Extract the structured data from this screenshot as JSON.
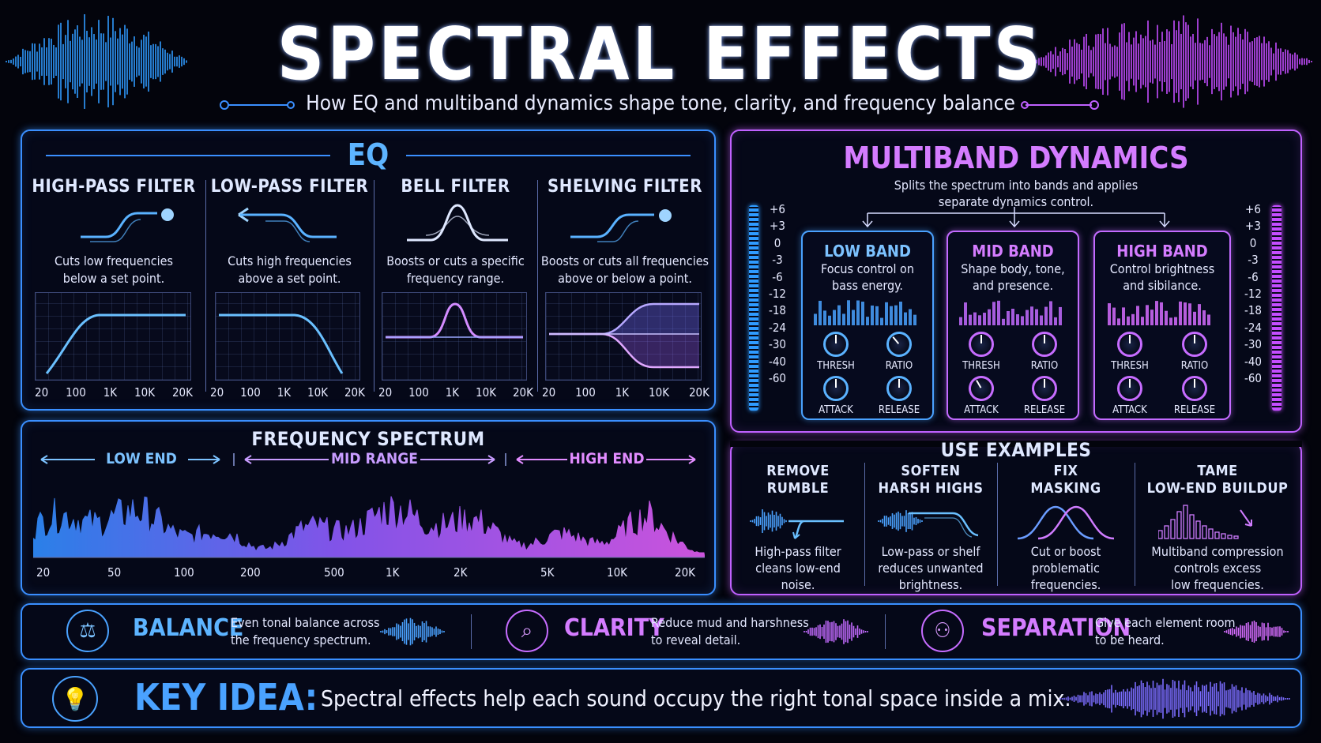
{
  "title": "SPECTRAL EFFECTS",
  "subtitle": "How EQ and multiband dynamics shape tone, clarity, and frequency balance",
  "eq": {
    "heading": "EQ",
    "filters": [
      {
        "name": "HIGH-PASS FILTER",
        "desc1": "Cuts low frequencies",
        "desc2": "below a set point.",
        "ticks": [
          "20",
          "100",
          "1K",
          "10K",
          "20K"
        ]
      },
      {
        "name": "LOW-PASS FILTER",
        "desc1": "Cuts high frequencies",
        "desc2": "above a set point.",
        "ticks": [
          "20",
          "100",
          "1K",
          "10K",
          "20K"
        ]
      },
      {
        "name": "BELL FILTER",
        "desc1": "Boosts or cuts a specific",
        "desc2": "frequency range.",
        "ticks": [
          "20",
          "100",
          "1K",
          "10K",
          "20K"
        ]
      },
      {
        "name": "SHELVING FILTER",
        "desc1": "Boosts or cuts all frequencies",
        "desc2": "above or below a point.",
        "ticks": [
          "20",
          "100",
          "1K",
          "10K",
          "20K"
        ]
      }
    ]
  },
  "spectrum": {
    "heading": "FREQUENCY SPECTRUM",
    "regions": [
      "LOW END",
      "MID RANGE",
      "HIGH END"
    ],
    "ticks": [
      "20",
      "50",
      "100",
      "200",
      "500",
      "1K",
      "2K",
      "5K",
      "10K",
      "20K"
    ]
  },
  "multiband": {
    "heading": "MULTIBAND DYNAMICS",
    "desc1": "Splits the spectrum into bands and applies",
    "desc2": "separate dynamics control.",
    "scale": [
      "+6",
      "+3",
      "0",
      "-3",
      "-6",
      "-12",
      "-18",
      "-24",
      "-30",
      "-40",
      "-60"
    ],
    "bands": [
      {
        "name": "LOW BAND",
        "desc1": "Focus control on",
        "desc2": "bass energy."
      },
      {
        "name": "MID BAND",
        "desc1": "Shape body, tone,",
        "desc2": "and presence."
      },
      {
        "name": "HIGH BAND",
        "desc1": "Control brightness",
        "desc2": "and sibilance."
      }
    ],
    "knobs": [
      "THRESH",
      "RATIO",
      "ATTACK",
      "RELEASE"
    ]
  },
  "use_examples": {
    "heading": "USE EXAMPLES",
    "items": [
      {
        "t1": "REMOVE",
        "t2": "RUMBLE",
        "d1": "High-pass filter",
        "d2": "cleans low-end",
        "d3": "noise."
      },
      {
        "t1": "SOFTEN",
        "t2": "HARSH HIGHS",
        "d1": "Low-pass or shelf",
        "d2": "reduces unwanted",
        "d3": "brightness."
      },
      {
        "t1": "FIX",
        "t2": "MASKING",
        "d1": "Cut or boost",
        "d2": "problematic",
        "d3": "frequencies."
      },
      {
        "t1": "TAME",
        "t2": "LOW-END BUILDUP",
        "d1": "Multiband compression",
        "d2": "controls excess",
        "d3": "low frequencies."
      }
    ]
  },
  "benefits": [
    {
      "title": "BALANCE",
      "d1": "Even tonal balance across",
      "d2": "the frequency spectrum.",
      "icon": "scale-icon",
      "color": "#5db4ff"
    },
    {
      "title": "CLARITY",
      "d1": "Reduce mud and harshness",
      "d2": "to reveal detail.",
      "icon": "magnifier-icon",
      "color": "#d47cff"
    },
    {
      "title": "SEPARATION",
      "d1": "Give each element room",
      "d2": "to be heard.",
      "icon": "people-icon",
      "color": "#d47cff"
    }
  ],
  "key_idea": {
    "label": "KEY IDEA:",
    "text": "Spectral effects help each sound occupy the right tonal space inside a mix.",
    "icon": "lightbulb-icon"
  },
  "colors": {
    "blue": "#3a8fff",
    "purple": "#c061ff",
    "background": "#03040c"
  }
}
